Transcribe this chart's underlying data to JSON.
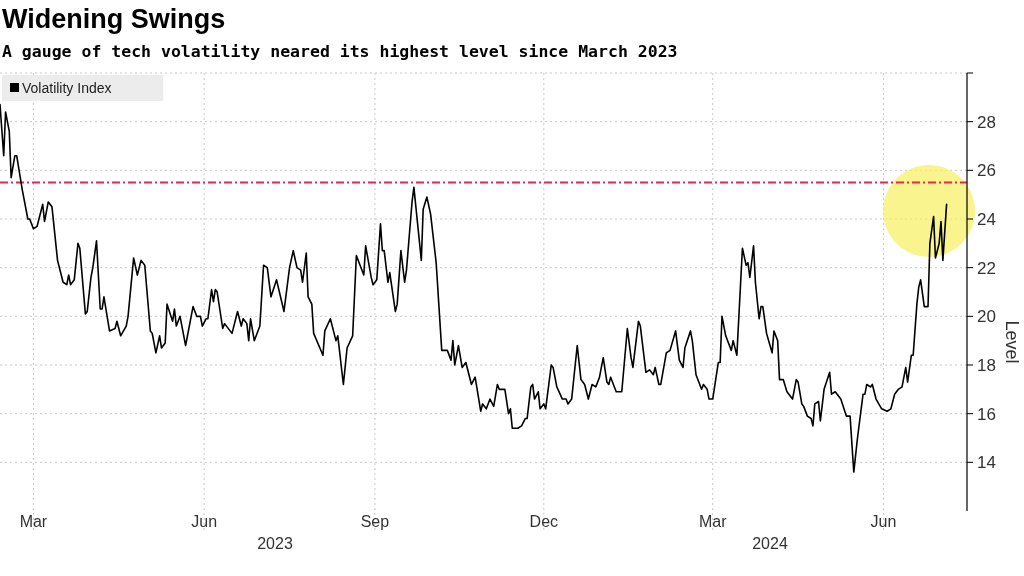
{
  "chart_data": {
    "type": "line",
    "title": "Widening Swings",
    "subtitle": "A gauge of tech volatility neared its highest level since March 2023",
    "ylabel": "Level",
    "xlim": [
      "2023-02-11",
      "2024-07-16"
    ],
    "xticks": [
      {
        "value": "2023-03-01",
        "label": "Mar"
      },
      {
        "value": "2023-06-01",
        "label": "Jun"
      },
      {
        "value": "2023-09-01",
        "label": "Sep"
      },
      {
        "value": "2023-12-01",
        "label": "Dec"
      },
      {
        "value": "2024-03-01",
        "label": "Mar"
      },
      {
        "value": "2024-06-01",
        "label": "Jun"
      }
    ],
    "ylim": [
      12,
      30
    ],
    "yticks": [
      14,
      16,
      18,
      20,
      22,
      24,
      26,
      28,
      {
        "value": 30,
        "label": null
      }
    ],
    "grid": true,
    "legend": "top left",
    "line_style": "solid",
    "marker": "none",
    "annotations": [
      "2023",
      "2024"
    ],
    "ref_lines": [
      {
        "axis": "y",
        "value": 25.5,
        "label": null,
        "color": "#e8254a",
        "line_style": "dashdot"
      }
    ],
    "series": [
      {
        "name": "Volatility Index",
        "color": "#000000",
        "x": [
          "2023-02-11",
          "2023-02-13",
          "2023-02-14",
          "2023-02-16",
          "2023-02-17",
          "2023-02-19",
          "2023-02-20",
          "2023-02-23",
          "2023-02-26",
          "2023-02-27",
          "2023-03-01",
          "2023-03-03",
          "2023-03-06",
          "2023-03-07",
          "2023-03-09",
          "2023-03-11",
          "2023-03-14",
          "2023-03-17",
          "2023-03-19",
          "2023-03-20",
          "2023-03-21",
          "2023-03-23",
          "2023-03-25",
          "2023-03-26",
          "2023-03-29",
          "2023-03-30",
          "2023-04-01",
          "2023-04-02",
          "2023-04-04",
          "2023-04-06",
          "2023-04-07",
          "2023-04-08",
          "2023-04-11",
          "2023-04-14",
          "2023-04-15",
          "2023-04-17",
          "2023-04-20",
          "2023-04-21",
          "2023-04-24",
          "2023-04-26",
          "2023-04-28",
          "2023-04-30",
          "2023-05-03",
          "2023-05-04",
          "2023-05-06",
          "2023-05-08",
          "2023-05-09",
          "2023-05-11",
          "2023-05-12",
          "2023-05-15",
          "2023-05-16",
          "2023-05-17",
          "2023-05-19",
          "2023-05-22",
          "2023-05-26",
          "2023-05-28",
          "2023-05-30",
          "2023-05-31",
          "2023-06-02",
          "2023-06-03",
          "2023-06-05",
          "2023-06-06",
          "2023-06-07",
          "2023-06-08",
          "2023-06-11",
          "2023-06-12",
          "2023-06-16",
          "2023-06-19",
          "2023-06-21",
          "2023-06-22",
          "2023-06-24",
          "2023-06-25",
          "2023-06-26",
          "2023-06-28",
          "2023-07-01",
          "2023-07-03",
          "2023-07-05",
          "2023-07-07",
          "2023-07-10",
          "2023-07-14",
          "2023-07-17",
          "2023-07-19",
          "2023-07-21",
          "2023-07-23",
          "2023-07-24",
          "2023-07-26",
          "2023-07-27",
          "2023-07-29",
          "2023-07-30",
          "2023-08-04",
          "2023-08-05",
          "2023-08-08",
          "2023-08-11",
          "2023-08-12",
          "2023-08-15",
          "2023-08-17",
          "2023-08-20",
          "2023-08-22",
          "2023-08-26",
          "2023-08-27",
          "2023-08-30",
          "2023-08-31",
          "2023-09-02",
          "2023-09-04",
          "2023-09-05",
          "2023-09-06",
          "2023-09-08",
          "2023-09-09",
          "2023-09-12",
          "2023-09-13",
          "2023-09-15",
          "2023-09-17",
          "2023-09-18",
          "2023-09-21",
          "2023-09-22",
          "2023-09-26",
          "2023-09-27",
          "2023-09-29",
          "2023-10-01",
          "2023-10-04",
          "2023-10-07",
          "2023-10-10",
          "2023-10-12",
          "2023-10-13",
          "2023-10-14",
          "2023-10-16",
          "2023-10-18",
          "2023-10-20",
          "2023-10-23",
          "2023-10-25",
          "2023-10-28",
          "2023-10-29",
          "2023-10-31",
          "2023-11-02",
          "2023-11-04",
          "2023-11-06",
          "2023-11-07",
          "2023-11-10",
          "2023-11-12",
          "2023-11-13",
          "2023-11-14",
          "2023-11-17",
          "2023-11-19",
          "2023-11-21",
          "2023-11-22",
          "2023-11-24",
          "2023-11-25",
          "2023-11-26",
          "2023-11-28",
          "2023-11-29",
          "2023-12-01",
          "2023-12-02",
          "2023-12-05",
          "2023-12-06",
          "2023-12-08",
          "2023-12-11",
          "2023-12-13",
          "2023-12-14",
          "2023-12-16",
          "2023-12-19",
          "2023-12-21",
          "2023-12-23",
          "2023-12-25",
          "2023-12-27",
          "2023-12-29",
          "2023-12-31",
          "2024-01-02",
          "2024-01-04",
          "2024-01-05",
          "2024-01-06",
          "2024-01-09",
          "2024-01-12",
          "2024-01-15",
          "2024-01-17",
          "2024-01-18",
          "2024-01-21",
          "2024-01-22",
          "2024-01-25",
          "2024-01-27",
          "2024-01-29",
          "2024-01-30",
          "2024-02-01",
          "2024-02-02",
          "2024-02-05",
          "2024-02-07",
          "2024-02-10",
          "2024-02-12",
          "2024-02-14",
          "2024-02-15",
          "2024-02-18",
          "2024-02-19",
          "2024-02-21",
          "2024-02-24",
          "2024-02-25",
          "2024-02-27",
          "2024-02-28",
          "2024-03-01",
          "2024-03-04",
          "2024-03-05",
          "2024-03-06",
          "2024-03-08",
          "2024-03-11",
          "2024-03-12",
          "2024-03-14",
          "2024-03-17",
          "2024-03-19",
          "2024-03-20",
          "2024-03-21",
          "2024-03-23",
          "2024-03-24",
          "2024-03-26",
          "2024-03-27",
          "2024-03-28",
          "2024-03-30",
          "2024-04-02",
          "2024-04-03",
          "2024-04-05",
          "2024-04-06",
          "2024-04-08",
          "2024-04-10",
          "2024-04-13",
          "2024-04-15",
          "2024-04-16",
          "2024-04-18",
          "2024-04-19",
          "2024-04-21",
          "2024-04-23",
          "2024-04-24",
          "2024-04-25",
          "2024-04-27",
          "2024-04-28",
          "2024-04-30",
          "2024-05-03",
          "2024-05-04",
          "2024-05-06",
          "2024-05-09",
          "2024-05-12",
          "2024-05-14",
          "2024-05-16",
          "2024-05-18",
          "2024-05-21",
          "2024-05-22",
          "2024-05-23",
          "2024-05-25",
          "2024-05-26",
          "2024-05-28",
          "2024-05-31",
          "2024-06-03",
          "2024-06-05",
          "2024-06-07",
          "2024-06-09",
          "2024-06-11",
          "2024-06-13",
          "2024-06-14",
          "2024-06-16",
          "2024-06-17",
          "2024-06-19",
          "2024-06-20",
          "2024-06-21",
          "2024-06-23",
          "2024-06-25",
          "2024-06-26",
          "2024-06-28",
          "2024-06-29",
          "2024-07-01",
          "2024-07-02",
          "2024-07-03",
          "2024-07-05"
        ],
        "values": [
          28.7,
          26.6,
          28.4,
          27.6,
          25.7,
          26.6,
          26.6,
          25.2,
          24.0,
          24.0,
          23.6,
          23.7,
          24.6,
          23.9,
          24.7,
          24.5,
          22.3,
          21.4,
          21.3,
          21.7,
          21.3,
          21.5,
          23.0,
          22.8,
          20.1,
          20.2,
          21.6,
          22.0,
          23.1,
          20.3,
          20.3,
          20.8,
          19.4,
          19.5,
          19.8,
          19.2,
          19.6,
          20.0,
          22.4,
          21.7,
          22.3,
          22.1,
          19.4,
          19.3,
          18.5,
          19.2,
          18.7,
          18.9,
          20.5,
          19.8,
          20.3,
          19.6,
          20.0,
          18.8,
          20.4,
          20.0,
          20.0,
          19.6,
          19.9,
          19.9,
          21.1,
          20.6,
          21.1,
          21.0,
          19.5,
          19.7,
          19.3,
          20.2,
          19.6,
          19.9,
          19.7,
          19.0,
          19.9,
          19.0,
          19.6,
          22.1,
          22.0,
          20.8,
          21.5,
          20.2,
          22.0,
          22.7,
          22.0,
          21.9,
          21.4,
          22.6,
          20.8,
          20.5,
          19.3,
          18.4,
          19.4,
          19.9,
          19.0,
          19.2,
          17.2,
          18.7,
          19.2,
          22.5,
          21.7,
          22.9,
          21.6,
          21.3,
          21.5,
          23.8,
          22.7,
          22.7,
          21.4,
          21.8,
          20.2,
          20.5,
          22.7,
          21.4,
          21.9,
          24.7,
          25.3,
          22.3,
          24.4,
          24.9,
          24.2,
          22.2,
          18.6,
          18.6,
          18.2,
          19.0,
          18.0,
          18.8,
          17.9,
          18.1,
          17.2,
          17.5,
          16.1,
          16.4,
          16.2,
          16.6,
          16.3,
          17.2,
          17.0,
          17.0,
          16.0,
          16.2,
          15.4,
          15.4,
          15.5,
          15.8,
          15.8,
          17.1,
          17.2,
          16.6,
          16.9,
          16.2,
          16.4,
          16.2,
          18.0,
          17.9,
          17.1,
          16.6,
          16.6,
          16.4,
          16.6,
          18.8,
          17.4,
          17.2,
          16.6,
          17.2,
          17.1,
          17.5,
          18.3,
          17.3,
          17.2,
          17.5,
          16.9,
          16.9,
          19.5,
          18.3,
          17.9,
          19.8,
          19.6,
          17.7,
          17.8,
          17.6,
          17.9,
          17.2,
          17.2,
          18.5,
          18.6,
          19.4,
          18.2,
          17.9,
          18.7,
          19.4,
          19.0,
          17.6,
          17.0,
          17.2,
          17.0,
          16.6,
          16.6,
          18.1,
          18.1,
          20.0,
          19.2,
          18.6,
          19.0,
          18.4,
          22.8,
          22.1,
          22.2,
          21.6,
          22.9,
          21.4,
          19.9,
          20.4,
          20.4,
          19.3,
          18.5,
          19.4,
          19.0,
          17.4,
          17.4,
          16.9,
          16.6,
          17.4,
          17.3,
          16.4,
          16.3,
          15.9,
          15.8,
          15.5,
          16.4,
          16.5,
          15.7,
          17.0,
          17.7,
          16.8,
          16.9,
          16.6,
          15.9,
          15.9,
          13.6,
          15.0,
          16.8,
          16.8,
          17.2,
          17.1,
          17.2,
          16.6,
          16.2,
          16.1,
          16.2,
          16.8,
          17.0,
          17.1,
          17.9,
          17.3,
          18.4,
          18.4,
          20.5,
          21.2,
          21.5,
          20.4,
          20.4,
          23.0,
          24.1,
          22.4,
          23.0,
          23.9,
          22.3,
          24.6
        ]
      }
    ]
  }
}
